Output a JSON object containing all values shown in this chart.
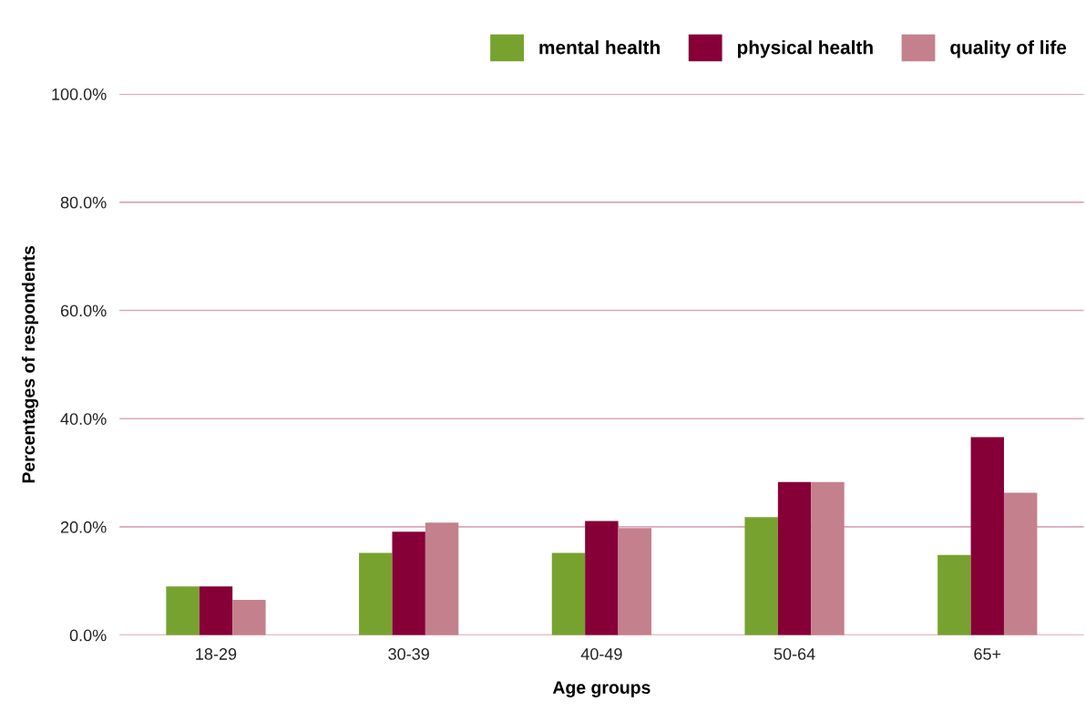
{
  "chart_data": {
    "type": "bar",
    "xlabel": "Age groups",
    "ylabel": "Percentages of respondents",
    "categories": [
      "18-29",
      "30-39",
      "40-49",
      "50-64",
      "65+"
    ],
    "series": [
      {
        "name": "mental health",
        "color": "#77a22f",
        "values": [
          9.0,
          15.2,
          15.2,
          21.8,
          14.8
        ]
      },
      {
        "name": "physical health",
        "color": "#860037",
        "values": [
          9.0,
          19.1,
          21.1,
          28.3,
          36.6
        ]
      },
      {
        "name": "quality of life",
        "color": "#c4808c",
        "values": [
          6.5,
          20.8,
          19.8,
          28.3,
          26.3
        ]
      }
    ],
    "ylim": [
      0,
      100
    ],
    "yticks": [
      {
        "value": 0,
        "label": "0.0%"
      },
      {
        "value": 20,
        "label": "20.0%"
      },
      {
        "value": 40,
        "label": "40.0%"
      },
      {
        "value": 60,
        "label": "60.0%"
      },
      {
        "value": 80,
        "label": "80.0%"
      },
      {
        "value": 100,
        "label": "100.0%"
      }
    ],
    "grid": "y",
    "legend": "top right"
  }
}
